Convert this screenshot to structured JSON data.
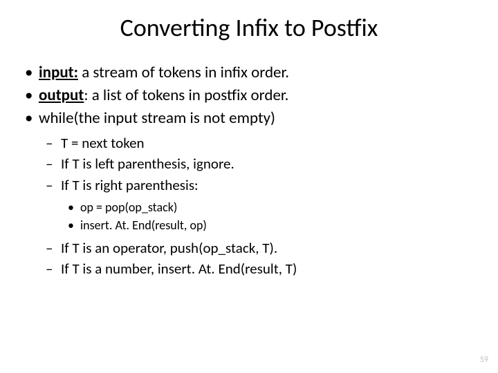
{
  "title": "Converting Infix to Postfix",
  "bullets": {
    "b1_label": "input:",
    "b1_rest": " a stream of tokens in infix order.",
    "b2_label": "output",
    "b2_rest": ": a list of tokens in postfix order.",
    "b3": "while(the input stream is not empty)",
    "s1": "T = next token",
    "s2": "If T is left parenthesis, ignore.",
    "s3": "If T is right parenthesis:",
    "t1": "op = pop(op_stack)",
    "t2": "insert. At. End(result, op)",
    "s4": "If T is an operator, push(op_stack, T).",
    "s5": "If T is a number, insert. At. End(result, T)"
  },
  "pagenum": "59",
  "colors": {
    "background": "#ffffff",
    "text": "#000000",
    "pagenum": "#bfbfbf"
  },
  "fonts": {
    "title_size": 36,
    "l1_size": 23,
    "l2_size": 21,
    "l3_size": 18
  }
}
